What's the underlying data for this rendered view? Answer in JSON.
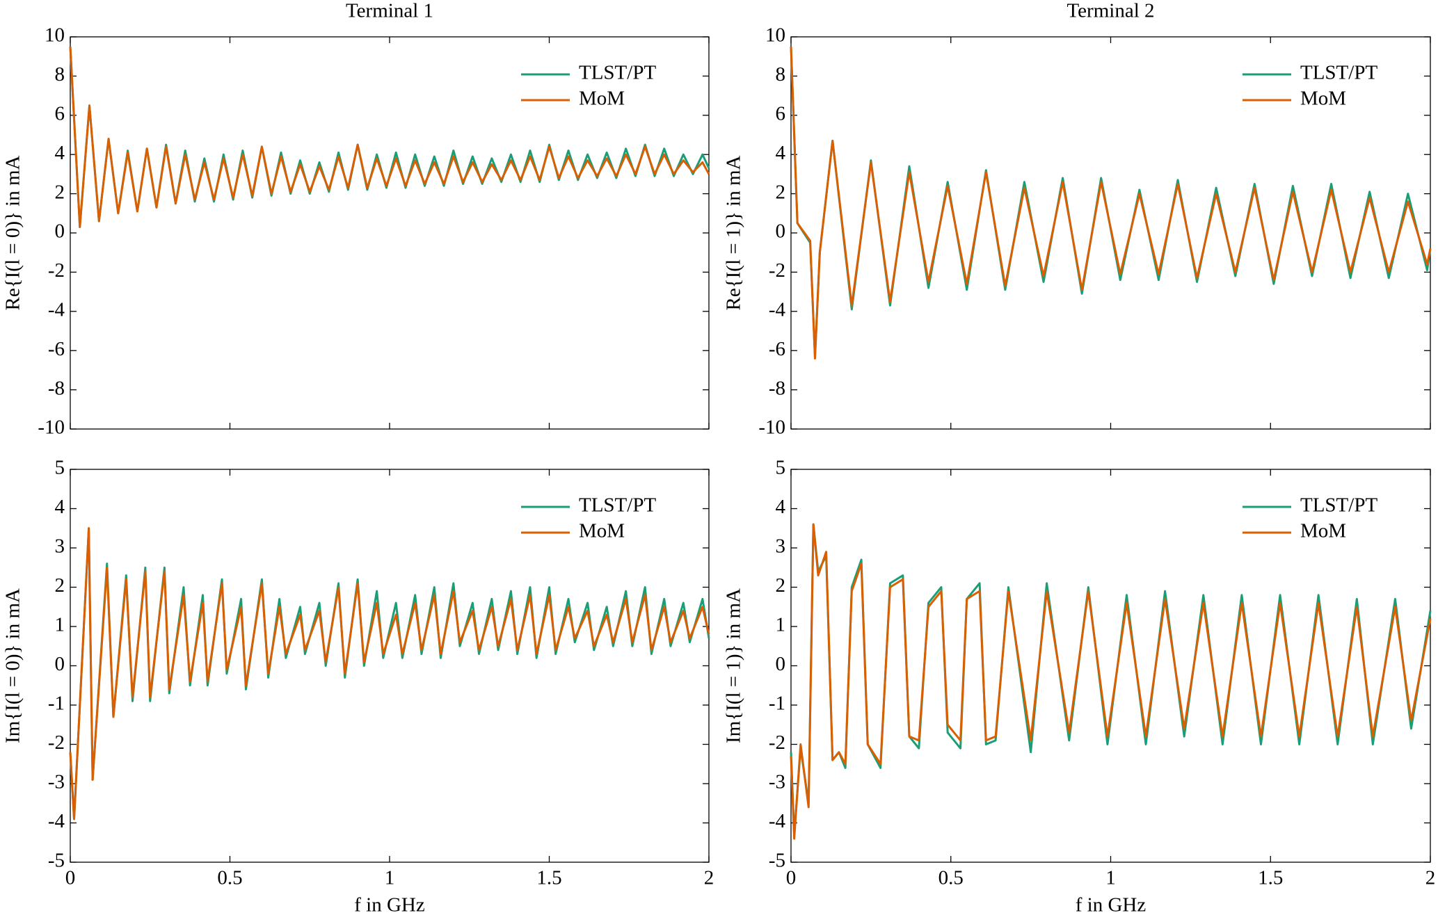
{
  "chart_data": [
    {
      "type": "line",
      "title": "Terminal 1",
      "ylabel": "Re{I(l = 0)} in mA",
      "legend": "upper right",
      "xlim": [
        0,
        2
      ],
      "ylim": [
        -10,
        10
      ],
      "xticks": [
        0,
        0.5,
        1,
        1.5,
        2
      ],
      "yticks": [
        -10,
        -8,
        -6,
        -4,
        -2,
        0,
        2,
        4,
        6,
        8,
        10
      ],
      "x": [
        0,
        0.03,
        0.06,
        0.09,
        0.12,
        0.15,
        0.18,
        0.21,
        0.24,
        0.27,
        0.3,
        0.33,
        0.36,
        0.39,
        0.42,
        0.45,
        0.48,
        0.51,
        0.54,
        0.57,
        0.6,
        0.63,
        0.66,
        0.69,
        0.72,
        0.75,
        0.78,
        0.81,
        0.84,
        0.87,
        0.9,
        0.93,
        0.96,
        0.99,
        1.02,
        1.05,
        1.08,
        1.11,
        1.14,
        1.17,
        1.2,
        1.23,
        1.26,
        1.29,
        1.32,
        1.35,
        1.38,
        1.41,
        1.44,
        1.47,
        1.5,
        1.53,
        1.56,
        1.59,
        1.62,
        1.65,
        1.68,
        1.71,
        1.74,
        1.77,
        1.8,
        1.83,
        1.86,
        1.89,
        1.92,
        1.95,
        1.98,
        2
      ],
      "series": [
        {
          "name": "TLST/PT",
          "color": "#1b9e77",
          "values": [
            9.5,
            0.3,
            6.5,
            0.6,
            4.8,
            1.0,
            4.2,
            1.1,
            4.3,
            1.3,
            4.5,
            1.5,
            4.2,
            1.6,
            3.8,
            1.6,
            4.0,
            1.7,
            4.2,
            1.8,
            4.4,
            1.9,
            4.1,
            2.0,
            3.7,
            2.0,
            3.6,
            2.1,
            4.1,
            2.2,
            4.5,
            2.2,
            4.0,
            2.3,
            4.1,
            2.3,
            4.0,
            2.4,
            3.9,
            2.4,
            4.2,
            2.5,
            3.9,
            2.5,
            3.8,
            2.6,
            4.0,
            2.6,
            4.2,
            2.6,
            4.5,
            2.7,
            4.2,
            2.7,
            4.0,
            2.8,
            4.1,
            2.8,
            4.3,
            2.9,
            4.5,
            2.9,
            4.3,
            2.9,
            4.0,
            3.0,
            4.0,
            3.3
          ]
        },
        {
          "name": "MoM",
          "color": "#d95f02",
          "values": [
            9.5,
            0.3,
            6.5,
            0.6,
            4.8,
            1.0,
            4.1,
            1.1,
            4.3,
            1.3,
            4.4,
            1.5,
            4.0,
            1.7,
            3.6,
            1.7,
            3.8,
            1.8,
            4.0,
            1.9,
            4.4,
            2.0,
            3.9,
            2.1,
            3.5,
            2.1,
            3.4,
            2.2,
            3.9,
            2.3,
            4.5,
            2.3,
            3.8,
            2.4,
            3.8,
            2.4,
            3.7,
            2.5,
            3.6,
            2.5,
            3.9,
            2.6,
            3.6,
            2.6,
            3.5,
            2.7,
            3.7,
            2.7,
            3.9,
            2.7,
            4.4,
            2.8,
            3.9,
            2.8,
            3.7,
            2.9,
            3.8,
            2.9,
            4.0,
            3.0,
            4.4,
            3.0,
            4.0,
            3.0,
            3.7,
            3.1,
            3.6,
            3.0
          ]
        }
      ]
    },
    {
      "type": "line",
      "title": "Terminal 2",
      "ylabel": "Re{I(l = 1)} in mA",
      "legend": "upper right",
      "xlim": [
        0,
        2
      ],
      "ylim": [
        -10,
        10
      ],
      "xticks": [
        0,
        0.5,
        1,
        1.5,
        2
      ],
      "yticks": [
        -10,
        -8,
        -6,
        -4,
        -2,
        0,
        2,
        4,
        6,
        8,
        10
      ],
      "x": [
        0,
        0.02,
        0.06,
        0.075,
        0.09,
        0.13,
        0.19,
        0.25,
        0.31,
        0.37,
        0.43,
        0.49,
        0.55,
        0.61,
        0.67,
        0.73,
        0.79,
        0.85,
        0.91,
        0.97,
        1.03,
        1.09,
        1.15,
        1.21,
        1.27,
        1.33,
        1.39,
        1.45,
        1.51,
        1.57,
        1.63,
        1.69,
        1.75,
        1.81,
        1.87,
        1.93,
        1.99,
        2
      ],
      "series": [
        {
          "name": "TLST/PT",
          "color": "#1b9e77",
          "values": [
            9.5,
            0.5,
            -0.5,
            -6.3,
            -1.0,
            4.7,
            -3.9,
            3.7,
            -3.7,
            3.4,
            -2.8,
            2.6,
            -2.9,
            3.2,
            -2.9,
            2.6,
            -2.5,
            2.8,
            -3.1,
            2.8,
            -2.4,
            2.2,
            -2.4,
            2.7,
            -2.5,
            2.3,
            -2.2,
            2.5,
            -2.6,
            2.4,
            -2.2,
            2.5,
            -2.3,
            2.1,
            -2.3,
            2.0,
            -1.9,
            -0.8
          ]
        },
        {
          "name": "MoM",
          "color": "#d95f02",
          "values": [
            9.5,
            0.5,
            -0.4,
            -6.4,
            -1.0,
            4.7,
            -3.7,
            3.6,
            -3.5,
            3.1,
            -2.5,
            2.4,
            -2.6,
            3.1,
            -2.7,
            2.3,
            -2.2,
            2.6,
            -2.9,
            2.6,
            -2.1,
            2.0,
            -2.1,
            2.5,
            -2.3,
            2.0,
            -2.0,
            2.3,
            -2.4,
            2.1,
            -2.0,
            2.2,
            -2.0,
            1.8,
            -2.0,
            1.6,
            -1.6,
            -0.8
          ]
        }
      ]
    },
    {
      "type": "line",
      "xlabel": "f in GHz",
      "ylabel": "Im{I(l = 0)} in mA",
      "legend": "upper right",
      "xlim": [
        0,
        2
      ],
      "ylim": [
        -5,
        5
      ],
      "xticks": [
        0,
        0.5,
        1,
        1.5,
        2
      ],
      "yticks": [
        -5,
        -4,
        -3,
        -2,
        -1,
        0,
        1,
        2,
        3,
        4,
        5
      ],
      "x": [
        0,
        0.012,
        0.058,
        0.07,
        0.115,
        0.135,
        0.175,
        0.195,
        0.235,
        0.25,
        0.295,
        0.31,
        0.355,
        0.375,
        0.415,
        0.43,
        0.475,
        0.49,
        0.535,
        0.55,
        0.6,
        0.62,
        0.655,
        0.675,
        0.72,
        0.735,
        0.78,
        0.8,
        0.84,
        0.86,
        0.9,
        0.92,
        0.96,
        0.98,
        1.02,
        1.04,
        1.08,
        1.1,
        1.14,
        1.16,
        1.2,
        1.22,
        1.26,
        1.28,
        1.32,
        1.34,
        1.38,
        1.4,
        1.44,
        1.46,
        1.5,
        1.52,
        1.56,
        1.58,
        1.62,
        1.64,
        1.68,
        1.7,
        1.74,
        1.76,
        1.8,
        1.82,
        1.86,
        1.88,
        1.92,
        1.94,
        1.98,
        2
      ],
      "series": [
        {
          "name": "TLST/PT",
          "color": "#1b9e77",
          "values": [
            -2.2,
            -3.9,
            3.5,
            -2.9,
            2.6,
            -1.3,
            2.3,
            -0.9,
            2.5,
            -0.9,
            2.5,
            -0.7,
            2.0,
            -0.5,
            1.8,
            -0.5,
            2.2,
            -0.2,
            1.7,
            -0.6,
            2.2,
            -0.3,
            1.7,
            0.2,
            1.5,
            0.3,
            1.6,
            0.0,
            2.1,
            -0.3,
            2.2,
            0.0,
            1.9,
            0.2,
            1.6,
            0.2,
            1.8,
            0.3,
            2.0,
            0.2,
            2.1,
            0.5,
            1.6,
            0.3,
            1.7,
            0.4,
            1.9,
            0.3,
            2.0,
            0.2,
            2.0,
            0.3,
            1.7,
            0.6,
            1.6,
            0.4,
            1.5,
            0.5,
            1.9,
            0.5,
            2.0,
            0.3,
            1.7,
            0.5,
            1.6,
            0.6,
            1.7,
            0.7
          ]
        },
        {
          "name": "MoM",
          "color": "#d95f02",
          "values": [
            -2.2,
            -3.9,
            3.5,
            -2.9,
            2.5,
            -1.3,
            2.2,
            -0.8,
            2.4,
            -0.8,
            2.4,
            -0.6,
            1.8,
            -0.4,
            1.6,
            -0.4,
            2.1,
            -0.1,
            1.5,
            -0.5,
            2.1,
            -0.2,
            1.5,
            0.3,
            1.3,
            0.4,
            1.4,
            0.1,
            2.0,
            -0.2,
            2.1,
            0.1,
            1.6,
            0.3,
            1.3,
            0.3,
            1.6,
            0.4,
            1.8,
            0.3,
            1.9,
            0.6,
            1.4,
            0.4,
            1.5,
            0.5,
            1.7,
            0.4,
            1.8,
            0.3,
            1.8,
            0.4,
            1.5,
            0.7,
            1.4,
            0.5,
            1.3,
            0.6,
            1.7,
            0.6,
            1.8,
            0.4,
            1.5,
            0.6,
            1.4,
            0.7,
            1.5,
            0.8
          ]
        }
      ]
    },
    {
      "type": "line",
      "xlabel": "f in GHz",
      "ylabel": "Im{I(l = 1)} in mA",
      "legend": "upper right",
      "xlim": [
        0,
        2
      ],
      "ylim": [
        -5,
        5
      ],
      "xticks": [
        0,
        0.5,
        1,
        1.5,
        2
      ],
      "yticks": [
        -5,
        -4,
        -3,
        -2,
        -1,
        0,
        1,
        2,
        3,
        4,
        5
      ],
      "x": [
        0,
        0.01,
        0.03,
        0.055,
        0.07,
        0.085,
        0.11,
        0.13,
        0.15,
        0.17,
        0.19,
        0.22,
        0.24,
        0.28,
        0.31,
        0.35,
        0.37,
        0.4,
        0.43,
        0.47,
        0.49,
        0.53,
        0.55,
        0.59,
        0.61,
        0.64,
        0.68,
        0.75,
        0.8,
        0.87,
        0.93,
        0.99,
        1.05,
        1.11,
        1.17,
        1.23,
        1.29,
        1.35,
        1.41,
        1.47,
        1.53,
        1.59,
        1.65,
        1.71,
        1.77,
        1.82,
        1.89,
        1.94,
        2
      ],
      "series": [
        {
          "name": "TLST/PT",
          "color": "#1b9e77",
          "values": [
            -2.2,
            -4.3,
            -2.1,
            -3.5,
            3.6,
            2.4,
            2.8,
            -2.4,
            -2.2,
            -2.6,
            2.0,
            2.7,
            -2.0,
            -2.6,
            2.1,
            2.3,
            -1.8,
            -2.1,
            1.6,
            2.0,
            -1.7,
            -2.1,
            1.7,
            2.1,
            -2.0,
            -1.9,
            2.0,
            -2.2,
            2.1,
            -1.9,
            2.0,
            -2.0,
            1.8,
            -2.0,
            1.9,
            -1.8,
            1.8,
            -2.0,
            1.8,
            -2.0,
            1.8,
            -2.0,
            1.8,
            -2.0,
            1.7,
            -2.0,
            1.7,
            -1.6,
            1.4
          ]
        },
        {
          "name": "MoM",
          "color": "#d95f02",
          "values": [
            -2.3,
            -4.4,
            -2.0,
            -3.6,
            3.6,
            2.3,
            2.9,
            -2.4,
            -2.2,
            -2.5,
            1.9,
            2.6,
            -2.0,
            -2.5,
            2.0,
            2.2,
            -1.8,
            -1.9,
            1.5,
            1.9,
            -1.5,
            -1.9,
            1.7,
            1.9,
            -1.9,
            -1.8,
            1.9,
            -1.9,
            1.9,
            -1.7,
            1.9,
            -1.8,
            1.6,
            -1.8,
            1.7,
            -1.6,
            1.6,
            -1.8,
            1.6,
            -1.8,
            1.6,
            -1.8,
            1.6,
            -1.8,
            1.5,
            -1.8,
            1.5,
            -1.4,
            1.2
          ]
        }
      ]
    }
  ]
}
